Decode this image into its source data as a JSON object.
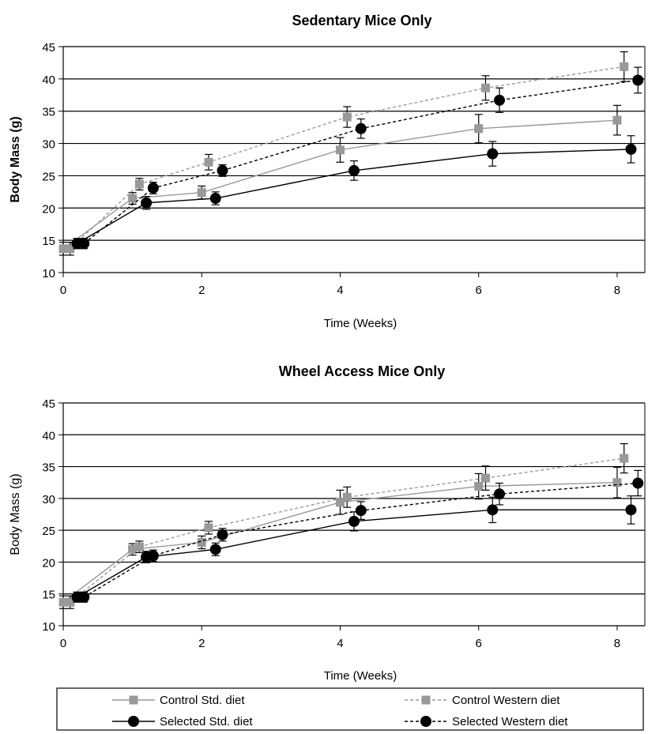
{
  "chart_data": [
    {
      "type": "line",
      "title": "Sedentary Mice Only",
      "xlabel": "Time (Weeks)",
      "ylabel": "Body Mass (g)",
      "ylabel_bold": true,
      "xlim": [
        0,
        8.4
      ],
      "ylim": [
        10,
        45
      ],
      "xticks": [
        0,
        2,
        4,
        6,
        8
      ],
      "yticks": [
        10,
        15,
        20,
        25,
        30,
        35,
        40,
        45
      ],
      "grid": "horizontal",
      "series": [
        {
          "name": "Control Std. diet",
          "x": [
            0,
            1,
            2,
            4,
            6,
            8
          ],
          "y": [
            13.7,
            21.5,
            22.4,
            29.0,
            32.3,
            33.6
          ],
          "err": [
            1.0,
            0.9,
            1.0,
            1.9,
            2.2,
            2.3
          ]
        },
        {
          "name": "Control Western diet",
          "x": [
            0.1,
            1.1,
            2.1,
            4.1,
            6.1,
            8.1
          ],
          "y": [
            13.7,
            23.7,
            27.1,
            34.1,
            38.6,
            41.9
          ],
          "err": [
            1.0,
            0.9,
            1.2,
            1.6,
            1.9,
            2.3
          ]
        },
        {
          "name": "Selected Std. diet",
          "x": [
            0.2,
            1.2,
            2.2,
            4.2,
            6.2,
            8.2
          ],
          "y": [
            14.5,
            20.8,
            21.5,
            25.8,
            28.4,
            29.1
          ],
          "err": [
            0.8,
            1.0,
            1.0,
            1.5,
            1.9,
            2.1
          ]
        },
        {
          "name": "Selected Western diet",
          "x": [
            0.3,
            1.3,
            2.3,
            4.3,
            6.3,
            8.3
          ],
          "y": [
            14.5,
            23.1,
            25.8,
            32.3,
            36.7,
            39.8
          ],
          "err": [
            0.8,
            0.9,
            0.9,
            1.5,
            1.9,
            2.0
          ]
        }
      ]
    },
    {
      "type": "line",
      "title": "Wheel Access Mice Only",
      "xlabel": "Time (Weeks)",
      "ylabel": "Body Mass (g)",
      "ylabel_bold": false,
      "xlim": [
        0,
        8.4
      ],
      "ylim": [
        10,
        45
      ],
      "xticks": [
        0,
        2,
        4,
        6,
        8
      ],
      "yticks": [
        10,
        15,
        20,
        25,
        30,
        35,
        40,
        45
      ],
      "grid": "horizontal",
      "series": [
        {
          "name": "Control Std. diet",
          "x": [
            0,
            1,
            2,
            4,
            6,
            8
          ],
          "y": [
            13.7,
            22.0,
            23.1,
            29.4,
            31.9,
            32.5
          ],
          "err": [
            1.0,
            0.9,
            1.0,
            1.9,
            2.0,
            2.4
          ]
        },
        {
          "name": "Control Western diet",
          "x": [
            0.1,
            1.1,
            2.1,
            4.1,
            6.1,
            8.1
          ],
          "y": [
            13.7,
            22.4,
            25.4,
            30.2,
            33.2,
            36.3
          ],
          "err": [
            1.0,
            0.9,
            1.0,
            1.6,
            1.9,
            2.3
          ]
        },
        {
          "name": "Selected Std. diet",
          "x": [
            0.2,
            1.2,
            2.2,
            4.2,
            6.2,
            8.2
          ],
          "y": [
            14.5,
            20.8,
            22.0,
            26.4,
            28.2,
            28.2
          ],
          "err": [
            0.8,
            0.9,
            1.0,
            1.5,
            2.0,
            2.2
          ]
        },
        {
          "name": "Selected Western diet",
          "x": [
            0.3,
            1.3,
            2.3,
            4.3,
            6.3,
            8.3
          ],
          "y": [
            14.5,
            21.0,
            24.3,
            28.1,
            30.7,
            32.4
          ],
          "err": [
            0.8,
            0.9,
            1.0,
            1.4,
            1.7,
            2.0
          ]
        }
      ]
    }
  ],
  "legend": {
    "placement": "bottom",
    "items": [
      {
        "label": "Control Std. diet",
        "color": "#999999",
        "marker": "square",
        "line": "solid"
      },
      {
        "label": "Control Western diet",
        "color": "#999999",
        "marker": "square",
        "line": "dashed"
      },
      {
        "label": "Selected Std. diet",
        "color": "#000000",
        "marker": "circle",
        "line": "solid"
      },
      {
        "label": "Selected Western diet",
        "color": "#000000",
        "marker": "circle",
        "line": "dashed"
      }
    ]
  }
}
